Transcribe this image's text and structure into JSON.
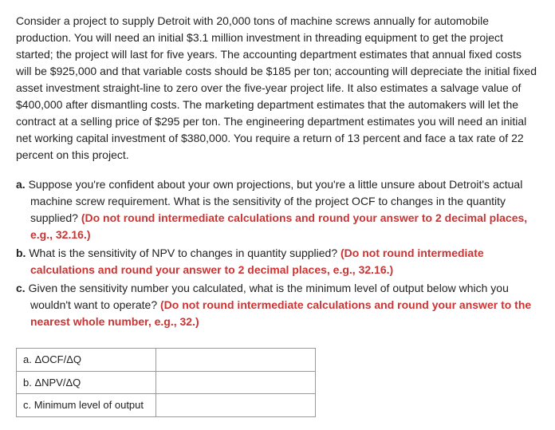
{
  "intro": "Consider a project to supply Detroit with 20,000 tons of machine screws annually for automobile production. You will need an initial $3.1 million investment in threading equipment to get the project started; the project will last for five years. The accounting department estimates that annual fixed costs will be $925,000 and that variable costs should be $185 per ton; accounting will depreciate the initial fixed asset investment straight-line to zero over the five-year project life. It also estimates a salvage value of $400,000 after dismantling costs. The marketing department estimates that the automakers will let the contract at a selling price of $295 per ton. The engineering department estimates you will need an initial net working capital investment of $380,000. You require a return of 13 percent and face a tax rate of 22 percent on this project.",
  "questions": {
    "a": {
      "prefix": "a. ",
      "text1": "Suppose you're confident about your own projections, but you're a little unsure about Detroit's actual machine screw requirement. What is the sensitivity of the project OCF to changes in the quantity supplied? ",
      "red": "(Do not round intermediate calculations and round your answer to 2 decimal places, e.g., 32.16.)"
    },
    "b": {
      "prefix": "b. ",
      "text1": "What is the sensitivity of NPV to changes in quantity supplied? ",
      "red": "(Do not round intermediate calculations and round your answer to 2 decimal places, e.g., 32.16.)"
    },
    "c": {
      "prefix": "c. ",
      "text1": "Given the sensitivity number you calculated, what is the minimum level of output below which you wouldn't want to operate? ",
      "red": "(Do not round intermediate calculations and round your answer to the nearest whole number, e.g., 32.)"
    }
  },
  "table": {
    "rowA": "a. ΔOCF/ΔQ",
    "rowB": "b. ΔNPV/ΔQ",
    "rowC": "c. Minimum level of output"
  }
}
